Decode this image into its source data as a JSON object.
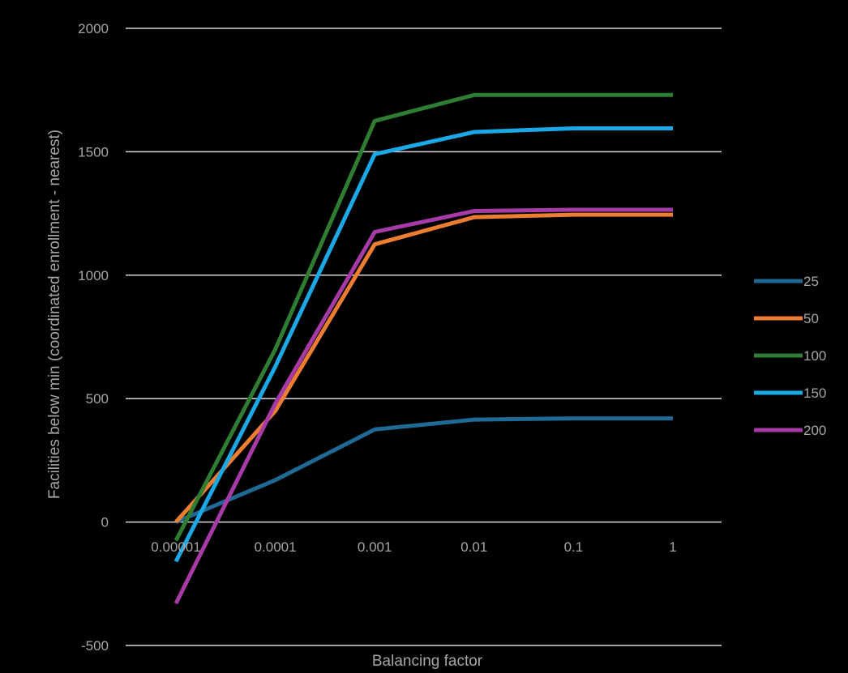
{
  "chart_data": {
    "type": "line",
    "title": "",
    "xlabel": "Balancing factor",
    "ylabel": "Facilities below min (coordinated enrollment - nearest)",
    "categories": [
      "0.00001",
      "0.0001",
      "0.001",
      "0.01",
      "0.1",
      "1"
    ],
    "x_tick_labels": [
      "0.00001",
      "0.0001",
      "0.001",
      "0.01",
      "0.1",
      "1"
    ],
    "y_tick_labels": [
      "2000",
      "1500",
      "1000",
      "500",
      "0",
      "-500"
    ],
    "y_ticks": [
      2000,
      1500,
      1000,
      500,
      0,
      -500
    ],
    "ylim": [
      -500,
      2000
    ],
    "grid": true,
    "legend_position": "right",
    "series": [
      {
        "name": "25",
        "color": "#1f6a94",
        "values": [
          0,
          170,
          375,
          415,
          420,
          420
        ]
      },
      {
        "name": "50",
        "color": "#ed7d31",
        "values": [
          0,
          450,
          1125,
          1235,
          1245,
          1245
        ]
      },
      {
        "name": "100",
        "color": "#2e7d32",
        "values": [
          -75,
          700,
          1625,
          1730,
          1730,
          1730
        ]
      },
      {
        "name": "150",
        "color": "#1aa8e6",
        "values": [
          -160,
          630,
          1490,
          1580,
          1595,
          1595
        ]
      },
      {
        "name": "200",
        "color": "#a63aa6",
        "values": [
          -330,
          480,
          1175,
          1260,
          1265,
          1265
        ]
      }
    ]
  }
}
